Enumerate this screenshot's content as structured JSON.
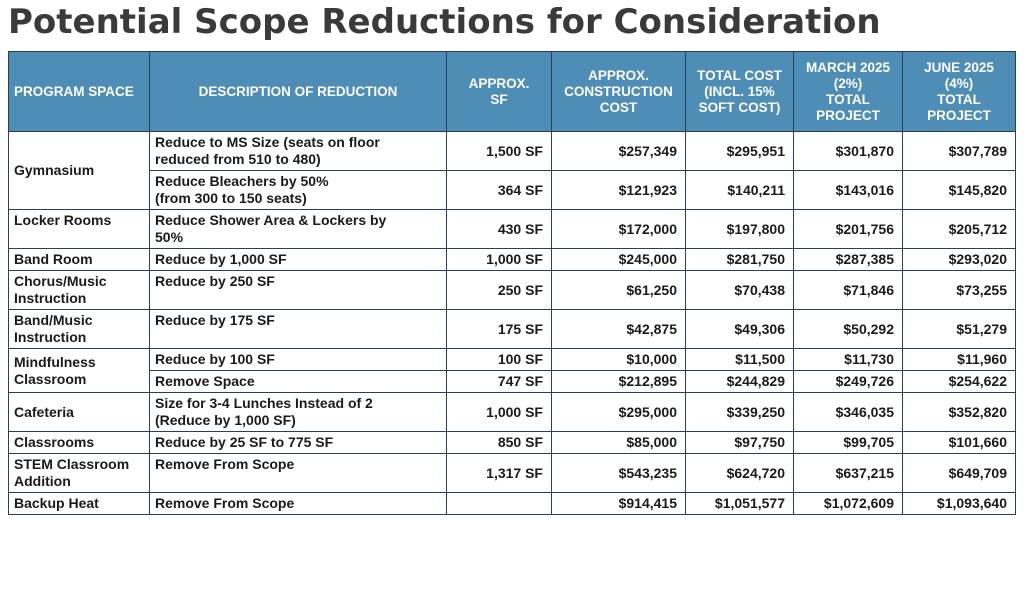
{
  "title": "Potential Scope Reductions for Consideration",
  "columns": {
    "program_space": "PROGRAM SPACE",
    "description": "DESCRIPTION OF REDUCTION",
    "sf": "APPROX.\nSF",
    "construction_cost": "APPROX.\nCONSTRUCTION\nCOST",
    "total_cost": "TOTAL COST\n(INCL. 15%\nSOFT COST)",
    "march_2025": "MARCH 2025\n(2%)\nTOTAL\nPROJECT",
    "june_2025": "JUNE 2025\n(4%)\nTOTAL\nPROJECT"
  },
  "groups": {
    "gymnasium": {
      "space": "Gymnasium",
      "rows": [
        {
          "description": "Reduce to MS Size (seats on floor\nreduced from 510 to 480)",
          "sf": "1,500 SF",
          "construction": "$257,349",
          "total": "$295,951",
          "march": "$301,870",
          "june": "$307,789"
        },
        {
          "description": "Reduce Bleachers by 50%\n(from 300 to 150 seats)",
          "sf": "364 SF",
          "construction": "$121,923",
          "total": "$140,211",
          "march": "$143,016",
          "june": "$145,820"
        }
      ]
    },
    "locker_rooms": {
      "space": "Locker Rooms",
      "row": {
        "description": "Reduce Shower Area & Lockers by\n50%",
        "sf": "430 SF",
        "construction": "$172,000",
        "total": "$197,800",
        "march": "$201,756",
        "june": "$205,712"
      }
    },
    "band_room": {
      "space": "Band Room",
      "row": {
        "description": "Reduce by 1,000 SF",
        "sf": "1,000 SF",
        "construction": "$245,000",
        "total": "$281,750",
        "march": "$287,385",
        "june": "$293,020"
      }
    },
    "chorus_music": {
      "space": "Chorus/Music\nInstruction",
      "row": {
        "description": "Reduce by 250 SF",
        "sf": "250 SF",
        "construction": "$61,250",
        "total": "$70,438",
        "march": "$71,846",
        "june": "$73,255"
      }
    },
    "band_music": {
      "space": "Band/Music\nInstruction",
      "row": {
        "description": "Reduce by 175 SF",
        "sf": "175 SF",
        "construction": "$42,875",
        "total": "$49,306",
        "march": "$50,292",
        "june": "$51,279"
      }
    },
    "mindfulness": {
      "space": "Mindfulness\nClassroom",
      "rows": [
        {
          "description": "Reduce by 100 SF",
          "sf": "100 SF",
          "construction": "$10,000",
          "total": "$11,500",
          "march": "$11,730",
          "june": "$11,960"
        },
        {
          "description": "Remove Space",
          "sf": "747 SF",
          "construction": "$212,895",
          "total": "$244,829",
          "march": "$249,726",
          "june": "$254,622"
        }
      ]
    },
    "cafeteria": {
      "space": "Cafeteria",
      "row": {
        "description": "Size for 3-4 Lunches Instead of 2\n(Reduce by 1,000 SF)",
        "sf": "1,000 SF",
        "construction": "$295,000",
        "total": "$339,250",
        "march": "$346,035",
        "june": "$352,820"
      }
    },
    "classrooms": {
      "space": "Classrooms",
      "row": {
        "description": "Reduce by 25 SF to 775 SF",
        "sf": "850 SF",
        "construction": "$85,000",
        "total": "$97,750",
        "march": "$99,705",
        "june": "$101,660"
      }
    },
    "stem": {
      "space": "STEM Classroom\nAddition",
      "row": {
        "description": "Remove From Scope",
        "sf": "1,317 SF",
        "construction": "$543,235",
        "total": "$624,720",
        "march": "$637,215",
        "june": "$649,709"
      }
    },
    "backup_heat": {
      "space": "Backup Heat",
      "row": {
        "description": "Remove From Scope",
        "sf": "",
        "construction": "$914,415",
        "total": "$1,051,577",
        "march": "$1,072,609",
        "june": "$1,093,640"
      }
    }
  }
}
